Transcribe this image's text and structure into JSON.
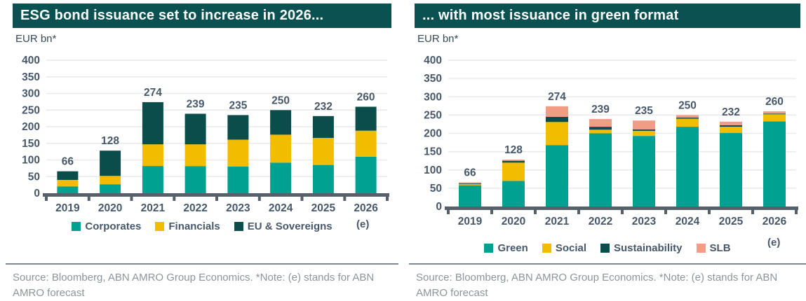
{
  "colors": {
    "teal": "#00A191",
    "yellow": "#F2BC00",
    "dark_teal": "#0A4D4A",
    "salmon": "#F29B85",
    "title_bg": "#0B5151",
    "label": "#47586B",
    "axis": "#55606B",
    "grid": "#E9E9E9",
    "source_text": "#8D9499"
  },
  "chart_data": [
    {
      "type": "bar",
      "subtype": "stacked",
      "title": "ESG bond issuance set to increase in 2026...",
      "unit": "EUR bn*",
      "e_note": "(e)",
      "categories": [
        "2019",
        "2020",
        "2021",
        "2022",
        "2023",
        "2024",
        "2025",
        "2026"
      ],
      "totals": [
        66,
        128,
        274,
        239,
        235,
        250,
        232,
        260
      ],
      "series": [
        {
          "name": "Corporates",
          "color": "teal",
          "values": [
            20,
            27,
            82,
            81,
            80,
            92,
            85,
            110
          ]
        },
        {
          "name": "Financials",
          "color": "yellow",
          "values": [
            20,
            25,
            65,
            66,
            81,
            84,
            81,
            78
          ]
        },
        {
          "name": "EU & Sovereigns",
          "color": "dark_teal",
          "values": [
            26,
            76,
            127,
            92,
            74,
            74,
            66,
            72
          ]
        }
      ],
      "ylim": [
        0,
        400
      ],
      "ytick_step": 50,
      "grid": true,
      "legend_position": "bottom",
      "source": "Source: Bloomberg, ABN AMRO Group Economics. *Note: (e) stands for ABN AMRO forecast"
    },
    {
      "type": "bar",
      "subtype": "stacked",
      "title": "... with most issuance in green format",
      "unit": "EUR bn*",
      "e_note": "(e)",
      "categories": [
        "2019",
        "2020",
        "2021",
        "2022",
        "2023",
        "2024",
        "2025",
        "2026"
      ],
      "totals": [
        66,
        128,
        274,
        239,
        235,
        250,
        232,
        260
      ],
      "series": [
        {
          "name": "Green",
          "color": "teal",
          "values": [
            58,
            70,
            168,
            200,
            193,
            218,
            201,
            233
          ]
        },
        {
          "name": "Social",
          "color": "yellow",
          "values": [
            3,
            50,
            63,
            10,
            14,
            22,
            17,
            19
          ]
        },
        {
          "name": "Sustainability",
          "color": "dark_teal",
          "values": [
            2,
            5,
            14,
            8,
            4,
            3,
            4,
            2
          ]
        },
        {
          "name": "SLB",
          "color": "salmon",
          "values": [
            3,
            3,
            29,
            21,
            24,
            7,
            10,
            6
          ]
        }
      ],
      "ylim": [
        0,
        400
      ],
      "ytick_step": 50,
      "grid": true,
      "legend_position": "bottom",
      "source": "Source: Bloomberg, ABN AMRO Group Economics. *Note: (e) stands for ABN AMRO forecast"
    }
  ]
}
